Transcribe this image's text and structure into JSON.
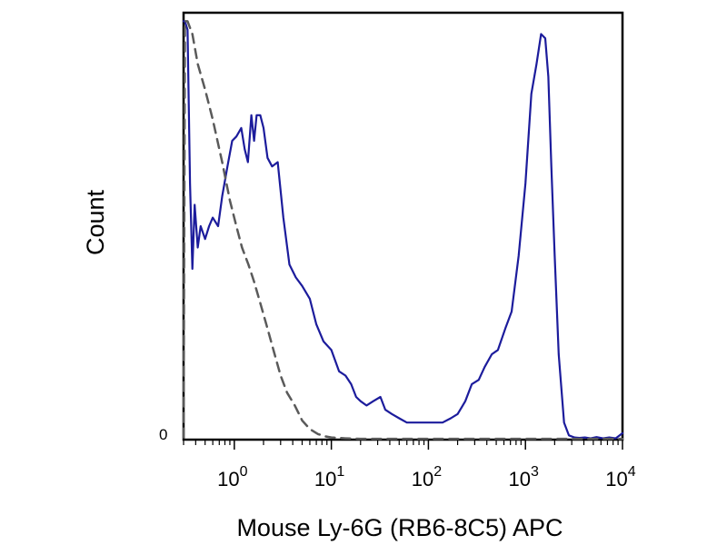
{
  "chart_data": {
    "type": "line",
    "title": "",
    "xlabel": "Mouse Ly-6G (RB6-8C5) APC",
    "ylabel": "Count",
    "x_scale": "log",
    "xlim": [
      0.3,
      10000
    ],
    "ylim": [
      0,
      100
    ],
    "y_tick_labels": [
      "0"
    ],
    "x_ticks": [
      {
        "value": 1,
        "base": "10",
        "exp": "0"
      },
      {
        "value": 10,
        "base": "10",
        "exp": "1"
      },
      {
        "value": 100,
        "base": "10",
        "exp": "2"
      },
      {
        "value": 1000,
        "base": "10",
        "exp": "3"
      },
      {
        "value": 10000,
        "base": "10",
        "exp": "4"
      }
    ],
    "grid": false,
    "series": [
      {
        "color": "#1c1c9c",
        "style": "solid",
        "x": [
          0.3,
          0.31,
          0.33,
          0.35,
          0.37,
          0.39,
          0.42,
          0.45,
          0.5,
          0.55,
          0.6,
          0.68,
          0.75,
          0.85,
          0.95,
          1.05,
          1.18,
          1.28,
          1.38,
          1.5,
          1.6,
          1.7,
          1.85,
          2.0,
          2.2,
          2.45,
          2.8,
          3.2,
          3.7,
          4.3,
          5.0,
          6.0,
          7.0,
          8.3,
          10,
          12,
          14,
          16,
          18,
          20,
          23,
          27,
          32,
          36,
          42,
          50,
          60,
          75,
          90,
          110,
          140,
          170,
          200,
          240,
          280,
          330,
          380,
          450,
          520,
          620,
          720,
          850,
          1000,
          1150,
          1300,
          1450,
          1600,
          1720,
          1850,
          2000,
          2200,
          2500,
          2800,
          3200,
          3600,
          4100,
          4700,
          5400,
          6300,
          7300,
          8500,
          10000
        ],
        "y": [
          98,
          98,
          96,
          60,
          40,
          55,
          45,
          50,
          47,
          50,
          52,
          50,
          57,
          64,
          70,
          71,
          73,
          68,
          65,
          76,
          70,
          76,
          76,
          73,
          66,
          64,
          65,
          52,
          41,
          38,
          36,
          33,
          27,
          23,
          21,
          16,
          15,
          13,
          10,
          9,
          8,
          9,
          10,
          7,
          6,
          5,
          4,
          4,
          4,
          4,
          4,
          5,
          6,
          9,
          13,
          14,
          17,
          20,
          21,
          26,
          30,
          43,
          60,
          81,
          88,
          95,
          94,
          85,
          64,
          43,
          20,
          4,
          1,
          0.5,
          0.4,
          0.5,
          0.3,
          0.6,
          0.3,
          0.5,
          0.3,
          1.5
        ]
      },
      {
        "color": "#5a5a5a",
        "style": "dashed",
        "x": [
          0.3,
          0.31,
          0.33,
          0.37,
          0.42,
          0.5,
          0.6,
          0.75,
          0.9,
          1.05,
          1.2,
          1.4,
          1.6,
          1.85,
          2.2,
          2.6,
          3.0,
          3.5,
          4.2,
          5.0,
          6.0,
          7.3,
          8.5,
          10,
          14,
          20,
          40,
          100,
          300,
          1000,
          3000,
          10000
        ],
        "y": [
          0.5,
          98,
          98,
          95,
          88,
          82,
          75,
          65,
          56,
          50,
          45,
          41,
          37,
          32,
          26,
          20,
          15,
          11,
          8,
          4.5,
          2.5,
          1.3,
          0.8,
          0.5,
          0.3,
          0.2,
          0.2,
          0.2,
          0.2,
          0.2,
          0.2,
          0.2
        ]
      }
    ]
  }
}
